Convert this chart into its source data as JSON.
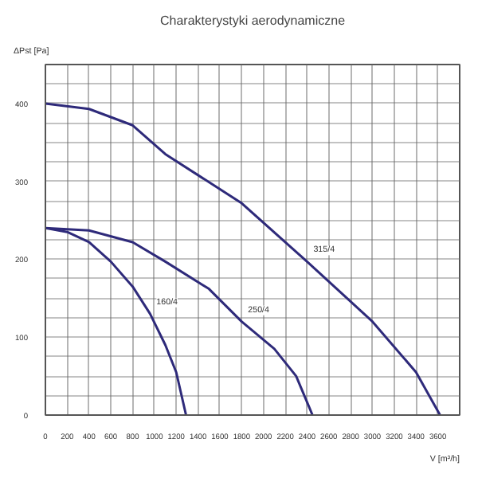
{
  "chart_data": {
    "type": "line",
    "title": "Charakterystyki aerodynamiczne",
    "xlabel": "V [m³/h]",
    "ylabel": "ΔPst [Pa]",
    "xlim": [
      0,
      3800
    ],
    "ylim": [
      0,
      450
    ],
    "xticks": [
      0,
      200,
      400,
      600,
      800,
      1000,
      1200,
      1400,
      1600,
      1800,
      2000,
      2200,
      2400,
      2600,
      2800,
      3000,
      3200,
      3400,
      3600
    ],
    "yticks": [
      0,
      {
        "value": 25,
        "label": null
      },
      {
        "value": 50,
        "label": null
      },
      {
        "value": 75,
        "label": null
      },
      100,
      {
        "value": 125,
        "label": null
      },
      {
        "value": 150,
        "label": null
      },
      {
        "value": 175,
        "label": null
      },
      200,
      {
        "value": 225,
        "label": null
      },
      {
        "value": 250,
        "label": null
      },
      {
        "value": 275,
        "label": null
      },
      300,
      {
        "value": 325,
        "label": null
      },
      {
        "value": 350,
        "label": null
      },
      {
        "value": 375,
        "label": null
      },
      400,
      {
        "value": 425,
        "label": null
      },
      {
        "value": 450,
        "label": null
      }
    ],
    "grid": true,
    "marker": "none",
    "line_style": "solid",
    "series": [
      {
        "name": "315/4",
        "color": "#2e2a7a",
        "x": [
          0,
          400,
          800,
          1100,
          1800,
          2400,
          3000,
          3400,
          3620
        ],
        "values": [
          400,
          393,
          372,
          335,
          272,
          197,
          120,
          55,
          0
        ]
      },
      {
        "name": "250/4",
        "color": "#2e2a7a",
        "x": [
          0,
          400,
          800,
          1100,
          1500,
          1800,
          2100,
          2300,
          2450
        ],
        "values": [
          240,
          237,
          222,
          197,
          162,
          120,
          85,
          50,
          0
        ]
      },
      {
        "name": "160/4",
        "color": "#2e2a7a",
        "x": [
          0,
          200,
          400,
          600,
          800,
          960,
          1100,
          1200,
          1290
        ],
        "values": [
          240,
          235,
          222,
          197,
          165,
          130,
          90,
          55,
          0
        ]
      }
    ]
  }
}
